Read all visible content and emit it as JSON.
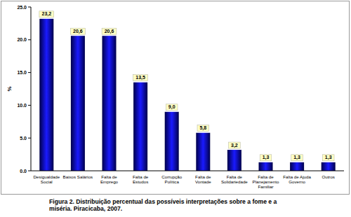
{
  "chart_data": {
    "type": "bar",
    "title": "Figura 2. Distribuição percentual das possíveis interpretações sobre a fome e a miséria. Piracicaba, 2007.",
    "y_label": "%",
    "categories": [
      "Desigualdade Social",
      "Baixos Salários",
      "Falta de Emprego",
      "Falta de Estudos",
      "Corrupção Política",
      "Falta de Vontade",
      "Falta de Solidariedade",
      "Falta de Planejamento Familiar",
      "Falta de Ajuda Governo",
      "Outros"
    ],
    "values": [
      23.2,
      20.6,
      20.6,
      13.5,
      9.0,
      5.8,
      3.2,
      1.3,
      1.3,
      1.3
    ],
    "value_labels": [
      "23,2",
      "20,6",
      "20,6",
      "13,5",
      "9,0",
      "5,8",
      "3,2",
      "1,3",
      "1,3",
      "1,3"
    ],
    "data_labels": true,
    "color": "#1a1aff",
    "ylim": [
      0,
      25
    ],
    "yticks": [
      {
        "value": 0,
        "label": "0.0"
      },
      {
        "value": 5,
        "label": "5.0"
      },
      {
        "value": 10,
        "label": "10.0"
      },
      {
        "value": 15,
        "label": "15.0"
      },
      {
        "value": 20,
        "label": "20.0"
      },
      {
        "value": 25,
        "label": "25.0"
      }
    ],
    "grid": false
  }
}
